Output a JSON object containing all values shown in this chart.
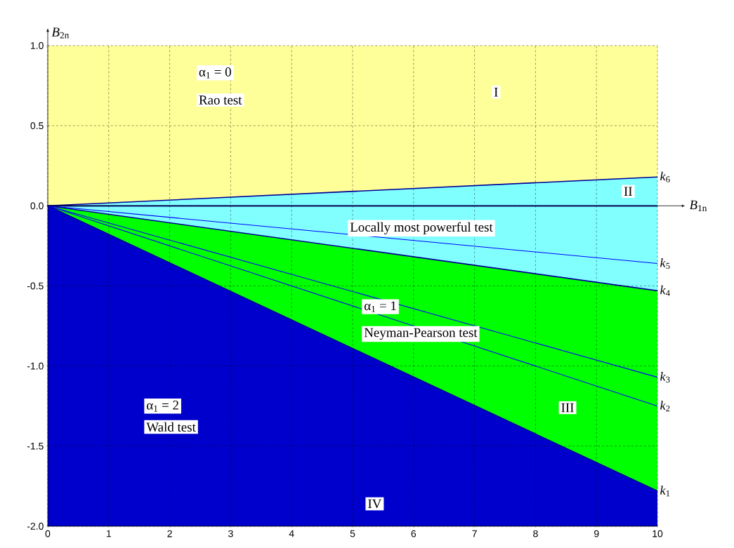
{
  "chart_data": {
    "type": "line",
    "xlabel": "*B*$_{1n}$",
    "ylabel": "*B*$_{2n}$",
    "xlim": [
      0,
      10
    ],
    "ylim": [
      -2,
      1
    ],
    "xticks": [
      0,
      1,
      2,
      3,
      4,
      5,
      6,
      7,
      8,
      9,
      10
    ],
    "yticks": [
      {
        "value": -2,
        "label": "-2.0"
      },
      -1.5,
      {
        "value": -1,
        "label": "-1.0"
      },
      -0.5,
      {
        "value": 0,
        "label": "0.0"
      },
      0.5,
      {
        "value": 1,
        "label": "1.0"
      }
    ],
    "grid": true,
    "marker": "none",
    "x": [
      0,
      10
    ],
    "series": [
      {
        "type": "area",
        "color": "#ffff99",
        "values": [
          1,
          1
        ]
      },
      {
        "type": "area",
        "color": "#0000cc",
        "values": [
          -2,
          -2
        ]
      },
      {
        "type": "area",
        "name": "*k*$_{1}$",
        "color": "#00ff00",
        "values": [
          0,
          -1.78
        ]
      },
      {
        "type": "area",
        "name": "*k*$_{4}$",
        "color": "#81ffff",
        "values": [
          0,
          -0.53
        ]
      },
      {
        "type": "area",
        "name": "*k*$_{6}$",
        "color": "#80ffff",
        "values": [
          0,
          0.18
        ]
      },
      {
        "name": "*k*$_{5}$",
        "color": "#0000ff",
        "values": [
          0,
          -0.36
        ]
      },
      {
        "name": "*k*$_{3}$",
        "color": "#0000ff",
        "values": [
          0,
          -1.07
        ]
      },
      {
        "name": "*k*$_{2}$",
        "color": "#0000ff",
        "values": [
          0,
          -1.25
        ]
      }
    ],
    "annotations": [
      "α$_{1}$ = 0",
      "Rao test",
      "I",
      "II",
      "Locally most powerful test",
      "α$_{1}$ = 1",
      "Neyman-Pearson test",
      "α$_{1}$ = 2",
      "Wald test",
      "III",
      "IV"
    ]
  }
}
